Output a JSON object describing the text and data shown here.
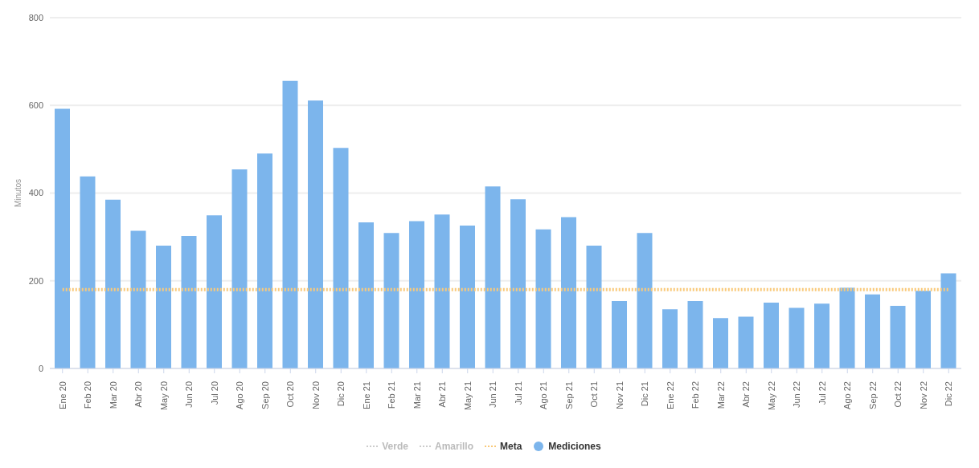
{
  "chart_data": {
    "type": "bar",
    "ylabel": "Minutos",
    "categories": [
      "Ene 20",
      "Feb 20",
      "Mar 20",
      "Abr 20",
      "May 20",
      "Jun 20",
      "Jul 20",
      "Ago 20",
      "Sep 20",
      "Oct 20",
      "Nov 20",
      "Dic 20",
      "Ene 21",
      "Feb 21",
      "Mar 21",
      "Abr 21",
      "May 21",
      "Jun 21",
      "Jul 21",
      "Ago 21",
      "Sep 21",
      "Oct 21",
      "Nov 21",
      "Dic 21",
      "Ene 22",
      "Feb 22",
      "Mar 22",
      "Abr 22",
      "May 22",
      "Jun 22",
      "Jul 22",
      "Ago 22",
      "Sep 22",
      "Oct 22",
      "Nov 22",
      "Dic 22"
    ],
    "series": [
      {
        "name": "Verde",
        "type": "line",
        "line_style": "dotted",
        "color": "#cccccc",
        "values": [
          null,
          null,
          null,
          null,
          null,
          null,
          null,
          null,
          null,
          null,
          null,
          null,
          null,
          null,
          null,
          null,
          null,
          null,
          null,
          null,
          null,
          null,
          null,
          null,
          null,
          null,
          null,
          null,
          null,
          null,
          null,
          null,
          null,
          null,
          null,
          null
        ]
      },
      {
        "name": "Amarillo",
        "type": "line",
        "line_style": "dotted",
        "color": "#cccccc",
        "values": [
          null,
          null,
          null,
          null,
          null,
          null,
          null,
          null,
          null,
          null,
          null,
          null,
          null,
          null,
          null,
          null,
          null,
          null,
          null,
          null,
          null,
          null,
          null,
          null,
          null,
          null,
          null,
          null,
          null,
          null,
          null,
          null,
          null,
          null,
          null,
          null
        ]
      },
      {
        "name": "Meta",
        "type": "line",
        "line_style": "dotted",
        "color": "#f9c97a",
        "values": [
          180,
          180,
          180,
          180,
          180,
          180,
          180,
          180,
          180,
          180,
          180,
          180,
          180,
          180,
          180,
          180,
          180,
          180,
          180,
          180,
          180,
          180,
          180,
          180,
          180,
          180,
          180,
          180,
          180,
          180,
          180,
          180,
          180,
          180,
          180,
          180
        ]
      },
      {
        "name": "Mediciones",
        "color": "#7cb5ec",
        "values": [
          592,
          438,
          385,
          314,
          280,
          302,
          349,
          454,
          490,
          656,
          611,
          503,
          333,
          309,
          336,
          351,
          326,
          415,
          386,
          317,
          345,
          280,
          154,
          309,
          135,
          154,
          115,
          118,
          150,
          138,
          148,
          184,
          169,
          143,
          177,
          217
        ]
      }
    ],
    "ylim": [
      0,
      800
    ],
    "yticks": [
      0,
      200,
      400,
      600,
      800
    ],
    "grid": "y",
    "legend": "bottom",
    "marker": "none"
  }
}
